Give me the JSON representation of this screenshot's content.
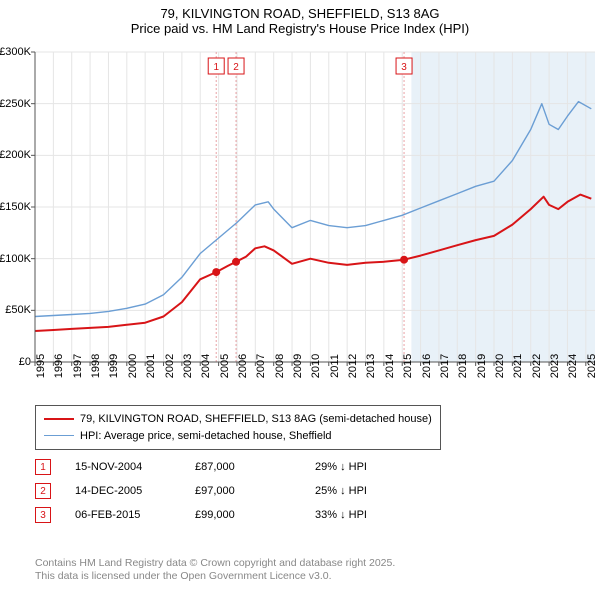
{
  "header": {
    "title": "79, KILVINGTON ROAD, SHEFFIELD, S13 8AG",
    "subtitle": "Price paid vs. HM Land Registry's House Price Index (HPI)"
  },
  "chart": {
    "type": "line",
    "background_color": "#ffffff",
    "forecast_band_color": "#e8f1f8",
    "forecast_start_year": 2015.5,
    "grid_color": "#e5e5e5",
    "axis_color": "#555555",
    "x_range": [
      1995,
      2025.5
    ],
    "y_range": [
      0,
      300000
    ],
    "y_ticks": [
      0,
      50000,
      100000,
      150000,
      200000,
      250000,
      300000
    ],
    "y_tick_labels": [
      "£0",
      "£50K",
      "£100K",
      "£150K",
      "£200K",
      "£250K",
      "£300K"
    ],
    "x_ticks": [
      1995,
      1996,
      1997,
      1998,
      1999,
      2000,
      2001,
      2002,
      2003,
      2004,
      2005,
      2006,
      2007,
      2008,
      2009,
      2010,
      2011,
      2012,
      2013,
      2014,
      2015,
      2016,
      2017,
      2018,
      2019,
      2020,
      2021,
      2022,
      2023,
      2024,
      2025
    ],
    "x_tick_labels": [
      "1995",
      "1996",
      "1997",
      "1998",
      "1999",
      "2000",
      "2001",
      "2002",
      "2003",
      "2004",
      "2005",
      "2006",
      "2007",
      "2008",
      "2009",
      "2010",
      "2011",
      "2012",
      "2013",
      "2014",
      "2015",
      "2016",
      "2017",
      "2018",
      "2019",
      "2020",
      "2021",
      "2022",
      "2023",
      "2024",
      "2025"
    ],
    "series": [
      {
        "name": "property",
        "label": "79, KILVINGTON ROAD, SHEFFIELD, S13 8AG (semi-detached house)",
        "color": "#d81417",
        "width": 2,
        "points": [
          [
            1995,
            30000
          ],
          [
            1996,
            31000
          ],
          [
            1997,
            32000
          ],
          [
            1998,
            33000
          ],
          [
            1999,
            34000
          ],
          [
            2000,
            36000
          ],
          [
            2001,
            38000
          ],
          [
            2002,
            44000
          ],
          [
            2003,
            58000
          ],
          [
            2004,
            80000
          ],
          [
            2004.87,
            87000
          ],
          [
            2005.5,
            93000
          ],
          [
            2005.95,
            97000
          ],
          [
            2006.5,
            102000
          ],
          [
            2007,
            110000
          ],
          [
            2007.5,
            112000
          ],
          [
            2008,
            108000
          ],
          [
            2009,
            95000
          ],
          [
            2010,
            100000
          ],
          [
            2011,
            96000
          ],
          [
            2012,
            94000
          ],
          [
            2013,
            96000
          ],
          [
            2014,
            97000
          ],
          [
            2015.1,
            99000
          ],
          [
            2016,
            103000
          ],
          [
            2017,
            108000
          ],
          [
            2018,
            113000
          ],
          [
            2019,
            118000
          ],
          [
            2020,
            122000
          ],
          [
            2021,
            133000
          ],
          [
            2022,
            148000
          ],
          [
            2022.7,
            160000
          ],
          [
            2023,
            152000
          ],
          [
            2023.5,
            148000
          ],
          [
            2024,
            155000
          ],
          [
            2024.7,
            162000
          ],
          [
            2025.3,
            158000
          ]
        ]
      },
      {
        "name": "hpi",
        "label": "HPI: Average price, semi-detached house, Sheffield",
        "color": "#6b9ed4",
        "width": 1.4,
        "points": [
          [
            1995,
            44000
          ],
          [
            1996,
            45000
          ],
          [
            1997,
            46000
          ],
          [
            1998,
            47000
          ],
          [
            1999,
            49000
          ],
          [
            2000,
            52000
          ],
          [
            2001,
            56000
          ],
          [
            2002,
            65000
          ],
          [
            2003,
            82000
          ],
          [
            2004,
            105000
          ],
          [
            2005,
            120000
          ],
          [
            2006,
            135000
          ],
          [
            2007,
            152000
          ],
          [
            2007.7,
            155000
          ],
          [
            2008,
            148000
          ],
          [
            2009,
            130000
          ],
          [
            2010,
            137000
          ],
          [
            2011,
            132000
          ],
          [
            2012,
            130000
          ],
          [
            2013,
            132000
          ],
          [
            2014,
            137000
          ],
          [
            2015,
            142000
          ],
          [
            2016,
            149000
          ],
          [
            2017,
            156000
          ],
          [
            2018,
            163000
          ],
          [
            2019,
            170000
          ],
          [
            2020,
            175000
          ],
          [
            2021,
            195000
          ],
          [
            2022,
            225000
          ],
          [
            2022.6,
            250000
          ],
          [
            2023,
            230000
          ],
          [
            2023.5,
            225000
          ],
          [
            2024,
            238000
          ],
          [
            2024.6,
            252000
          ],
          [
            2025.3,
            245000
          ]
        ]
      }
    ],
    "transactions": [
      {
        "n": "1",
        "year": 2004.87,
        "price": 87000,
        "date": "15-NOV-2004",
        "price_label": "£87,000",
        "delta": "29% ↓ HPI",
        "color": "#d81417"
      },
      {
        "n": "2",
        "year": 2005.95,
        "price": 97000,
        "date": "14-DEC-2005",
        "price_label": "£97,000",
        "delta": "25% ↓ HPI",
        "color": "#d81417"
      },
      {
        "n": "3",
        "year": 2015.1,
        "price": 99000,
        "date": "06-FEB-2015",
        "price_label": "£99,000",
        "delta": "33% ↓ HPI",
        "color": "#d81417"
      }
    ],
    "marker_line_color": "#e9a2a4",
    "marker_box_border": "#d81417",
    "marker_box_bg": "#ffffff",
    "marker_dot_color": "#d81417",
    "label_fontsize": 11,
    "title_fontsize": 13
  },
  "footer": {
    "line1": "Contains HM Land Registry data © Crown copyright and database right 2025.",
    "line2": "This data is licensed under the Open Government Licence v3.0."
  }
}
